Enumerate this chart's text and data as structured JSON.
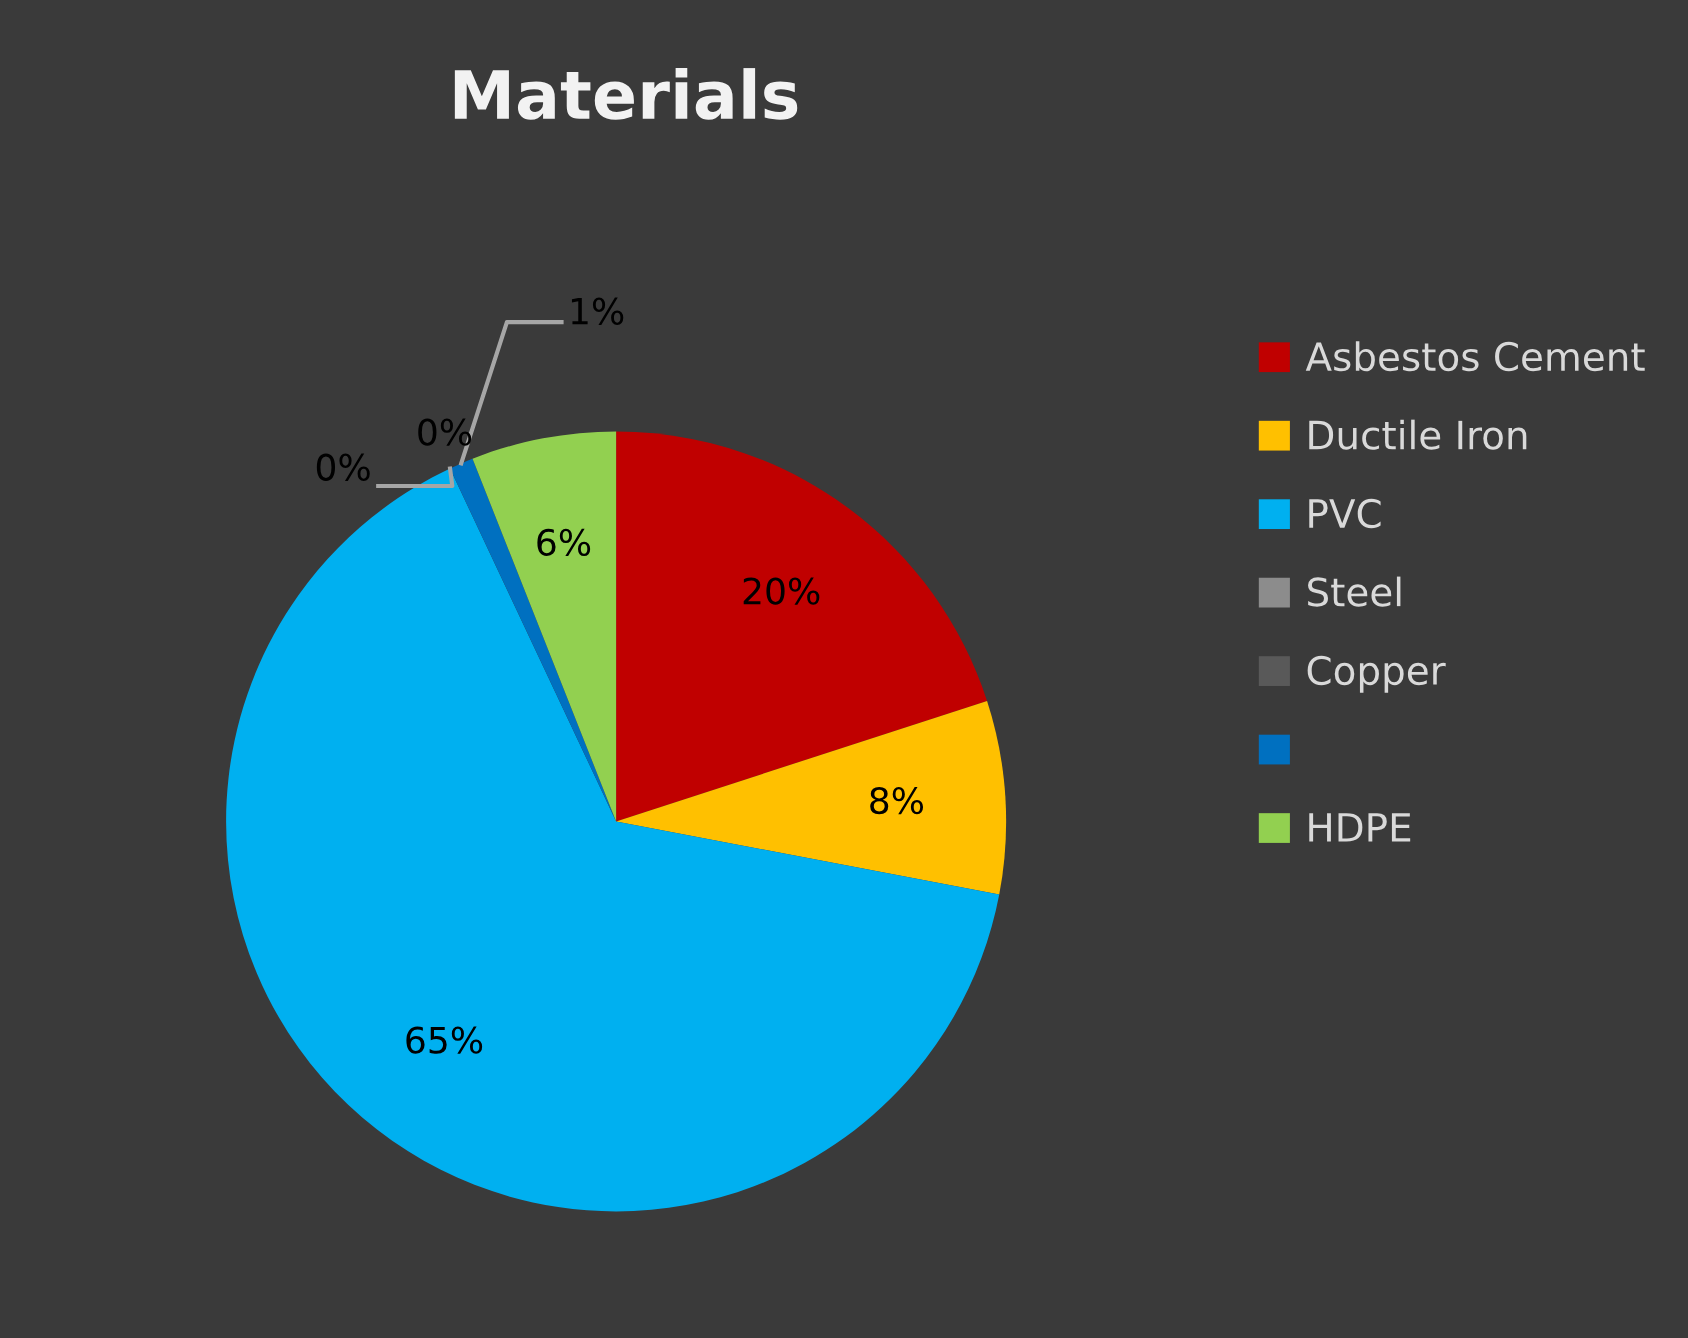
{
  "chart_data": {
    "type": "pie",
    "title": "Materials",
    "categories": [
      "Asbestos Cement",
      "Ductile Iron",
      "PVC",
      "Steel",
      "Copper",
      null,
      "HDPE"
    ],
    "values": [
      20,
      8,
      65,
      0,
      0,
      1,
      6
    ],
    "colors": [
      "#c00000",
      "#ffc000",
      "#00b0f0",
      "#8c8c8c",
      "#595959",
      "#0070c0",
      "#92d050"
    ],
    "value_labels": [
      "20%",
      "8%",
      "65%",
      "0%",
      "0%",
      "1%",
      "6%"
    ],
    "legend": "right"
  }
}
